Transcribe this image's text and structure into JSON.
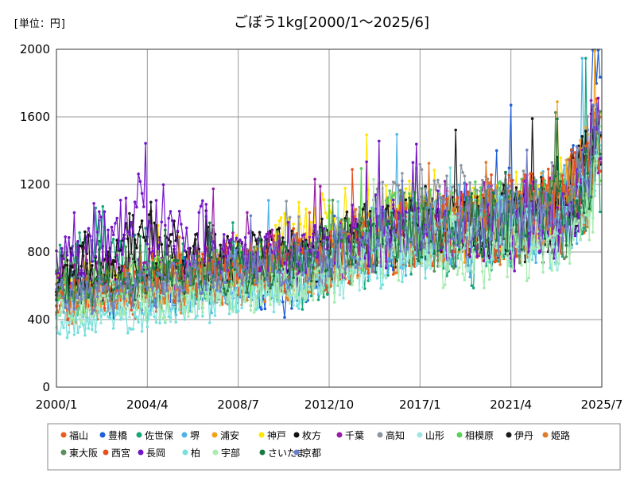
{
  "chart_data": {
    "type": "line",
    "title": "ごぼう1kg[2000/1～2025/6]",
    "unit_label": "[単位：円]",
    "ylim": [
      0,
      2000
    ],
    "yticks": [
      0,
      400,
      800,
      1200,
      1600,
      2000
    ],
    "x_start": "2000/1",
    "x_end": "2025/7",
    "x_ticks": [
      "2000/1",
      "2004/4",
      "2008/7",
      "2012/10",
      "2017/1",
      "2021/4",
      "2025/7"
    ],
    "grid": true,
    "legend_position": "bottom",
    "x_range_note": "monthly 2000/1–2025/6",
    "series": [
      {
        "name": "福山",
        "color": "#ea5b1c",
        "anchors": [
          [
            2000,
            480
          ],
          [
            2004,
            560
          ],
          [
            2008,
            650
          ],
          [
            2012,
            700
          ],
          [
            2016,
            900
          ],
          [
            2020,
            950
          ],
          [
            2024,
            1050
          ],
          [
            2025.4,
            1450
          ]
        ]
      },
      {
        "name": "豊橋",
        "color": "#1f5fd9",
        "anchors": [
          [
            2000,
            520
          ],
          [
            2004,
            560
          ],
          [
            2008,
            650
          ],
          [
            2011,
            560
          ],
          [
            2013,
            800
          ],
          [
            2017,
            950
          ],
          [
            2021,
            980
          ],
          [
            2024,
            1150
          ],
          [
            2025.4,
            1700
          ]
        ]
      },
      {
        "name": "佐世保",
        "color": "#17a67a",
        "anchors": [
          [
            2000,
            560
          ],
          [
            2002,
            900
          ],
          [
            2004,
            600
          ],
          [
            2008,
            640
          ],
          [
            2012,
            640
          ],
          [
            2016,
            900
          ],
          [
            2020,
            780
          ],
          [
            2024,
            1000
          ],
          [
            2025.4,
            1450
          ]
        ]
      },
      {
        "name": "堺",
        "color": "#4fb3e8",
        "anchors": [
          [
            2000,
            500
          ],
          [
            2004,
            560
          ],
          [
            2008,
            620
          ],
          [
            2012,
            700
          ],
          [
            2016,
            880
          ],
          [
            2020,
            900
          ],
          [
            2024,
            1050
          ],
          [
            2025.4,
            1500
          ]
        ]
      },
      {
        "name": "浦安",
        "color": "#f0a41c",
        "anchors": [
          [
            2000,
            520
          ],
          [
            2004,
            620
          ],
          [
            2008,
            680
          ],
          [
            2012,
            760
          ],
          [
            2016,
            900
          ],
          [
            2020,
            960
          ],
          [
            2024,
            1100
          ],
          [
            2025.4,
            1450
          ]
        ]
      },
      {
        "name": "神戸",
        "color": "#ffe600",
        "anchors": [
          [
            2000,
            600
          ],
          [
            2004,
            640
          ],
          [
            2008,
            700
          ],
          [
            2011,
            900
          ],
          [
            2014,
            1000
          ],
          [
            2018,
            1000
          ],
          [
            2022,
            1000
          ],
          [
            2025.4,
            1400
          ]
        ]
      },
      {
        "name": "枚方",
        "color": "#111111",
        "anchors": [
          [
            2000,
            700
          ],
          [
            2004,
            860
          ],
          [
            2008,
            780
          ],
          [
            2012,
            820
          ],
          [
            2016,
            960
          ],
          [
            2020,
            960
          ],
          [
            2023,
            950
          ],
          [
            2025.4,
            1500
          ]
        ]
      },
      {
        "name": "千葉",
        "color": "#9b1ca8",
        "anchors": [
          [
            2000,
            700
          ],
          [
            2004,
            680
          ],
          [
            2008,
            760
          ],
          [
            2012,
            780
          ],
          [
            2016,
            980
          ],
          [
            2020,
            1000
          ],
          [
            2024,
            1080
          ],
          [
            2025.4,
            1450
          ]
        ]
      },
      {
        "name": "高知",
        "color": "#8d96a0",
        "anchors": [
          [
            2000,
            560
          ],
          [
            2004,
            600
          ],
          [
            2008,
            680
          ],
          [
            2012,
            760
          ],
          [
            2016,
            1060
          ],
          [
            2020,
            1060
          ],
          [
            2023,
            1100
          ],
          [
            2025.4,
            1400
          ]
        ]
      },
      {
        "name": "山形",
        "color": "#9fe6e0",
        "anchors": [
          [
            2000,
            440
          ],
          [
            2004,
            500
          ],
          [
            2008,
            560
          ],
          [
            2012,
            620
          ],
          [
            2016,
            820
          ],
          [
            2020,
            880
          ],
          [
            2024,
            900
          ],
          [
            2025.4,
            1300
          ]
        ]
      },
      {
        "name": "相模原",
        "color": "#5ad15a",
        "anchors": [
          [
            2000,
            540
          ],
          [
            2004,
            620
          ],
          [
            2008,
            680
          ],
          [
            2012,
            740
          ],
          [
            2016,
            960
          ],
          [
            2020,
            1000
          ],
          [
            2024,
            1080
          ],
          [
            2025.4,
            1450
          ]
        ]
      },
      {
        "name": "伊丹",
        "color": "#1a1a1a",
        "anchors": [
          [
            2000,
            600
          ],
          [
            2004,
            700
          ],
          [
            2008,
            720
          ],
          [
            2012,
            780
          ],
          [
            2016,
            920
          ],
          [
            2020,
            980
          ],
          [
            2024,
            1050
          ],
          [
            2025.4,
            1500
          ]
        ]
      },
      {
        "name": "姫路",
        "color": "#e07b2a",
        "anchors": [
          [
            2000,
            500
          ],
          [
            2004,
            560
          ],
          [
            2008,
            640
          ],
          [
            2012,
            720
          ],
          [
            2016,
            880
          ],
          [
            2020,
            960
          ],
          [
            2024,
            1050
          ],
          [
            2025.4,
            1450
          ]
        ]
      },
      {
        "name": "東大阪",
        "color": "#5b8f5b",
        "anchors": [
          [
            2000,
            560
          ],
          [
            2004,
            620
          ],
          [
            2008,
            680
          ],
          [
            2012,
            740
          ],
          [
            2016,
            940
          ],
          [
            2020,
            920
          ],
          [
            2024,
            1000
          ],
          [
            2025.4,
            1400
          ]
        ]
      },
      {
        "name": "西宮",
        "color": "#e8501e",
        "anchors": [
          [
            2000,
            500
          ],
          [
            2004,
            600
          ],
          [
            2008,
            680
          ],
          [
            2012,
            760
          ],
          [
            2016,
            900
          ],
          [
            2020,
            980
          ],
          [
            2024,
            1080
          ],
          [
            2025.4,
            1600
          ]
        ]
      },
      {
        "name": "長岡",
        "color": "#7416c8",
        "anchors": [
          [
            2000,
            760
          ],
          [
            2004,
            1000
          ],
          [
            2008,
            820
          ],
          [
            2012,
            780
          ],
          [
            2016,
            960
          ],
          [
            2020,
            900
          ],
          [
            2024,
            1000
          ],
          [
            2025.4,
            1500
          ]
        ]
      },
      {
        "name": "柏",
        "color": "#78e0dc",
        "anchors": [
          [
            2000,
            360
          ],
          [
            2004,
            420
          ],
          [
            2008,
            540
          ],
          [
            2012,
            640
          ],
          [
            2016,
            860
          ],
          [
            2020,
            880
          ],
          [
            2024,
            960
          ],
          [
            2025.4,
            1350
          ]
        ]
      },
      {
        "name": "宇部",
        "color": "#a8ecb0",
        "anchors": [
          [
            2000,
            460
          ],
          [
            2004,
            540
          ],
          [
            2008,
            560
          ],
          [
            2012,
            640
          ],
          [
            2016,
            820
          ],
          [
            2020,
            800
          ],
          [
            2024,
            880
          ],
          [
            2025.4,
            1250
          ]
        ]
      },
      {
        "name": "さいたま",
        "color": "#1a7a44",
        "anchors": [
          [
            2000,
            560
          ],
          [
            2004,
            620
          ],
          [
            2008,
            700
          ],
          [
            2012,
            760
          ],
          [
            2016,
            920
          ],
          [
            2020,
            960
          ],
          [
            2024,
            1060
          ],
          [
            2025.4,
            1450
          ]
        ]
      },
      {
        "name": "京都",
        "color": "#6e7fc8",
        "anchors": [
          [
            2000,
            540
          ],
          [
            2004,
            600
          ],
          [
            2008,
            680
          ],
          [
            2012,
            760
          ],
          [
            2016,
            920
          ],
          [
            2020,
            980
          ],
          [
            2024,
            1080
          ],
          [
            2025.4,
            1500
          ]
        ]
      }
    ]
  }
}
